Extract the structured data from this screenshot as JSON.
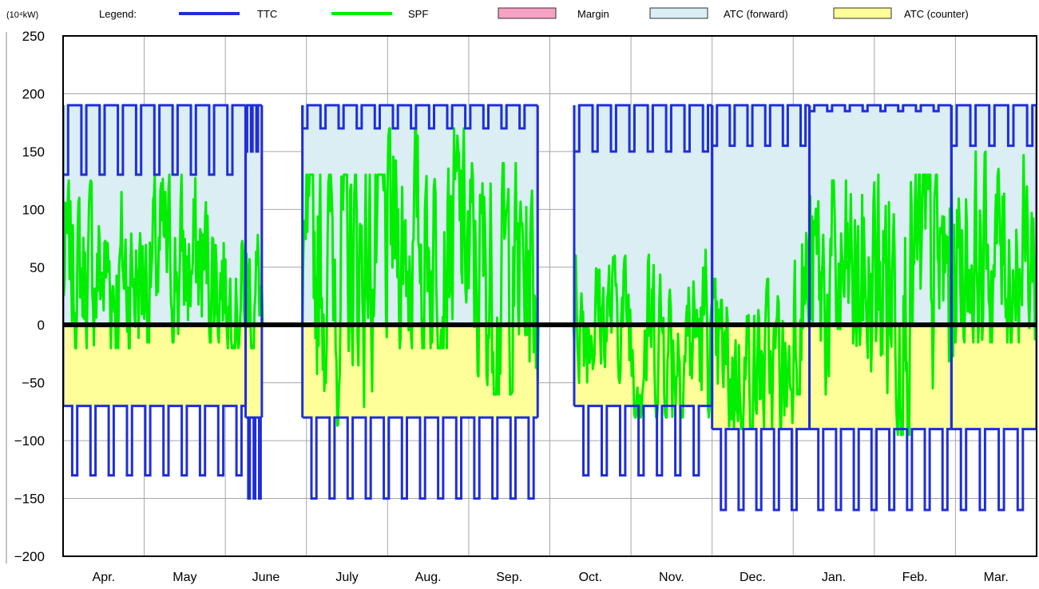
{
  "chart_data": {
    "type": "area",
    "unit_label": "(10⁴kW)",
    "legend_title": "Legend:",
    "ylim": [
      -200,
      250
    ],
    "yticks": [
      -200,
      -150,
      -100,
      -50,
      0,
      50,
      100,
      150,
      200,
      250
    ],
    "categories": [
      "Apr.",
      "May",
      "June",
      "July",
      "Aug.",
      "Sep.",
      "Oct.",
      "Nov.",
      "Dec.",
      "Jan.",
      "Feb.",
      "Mar."
    ],
    "grid": true,
    "legend": "top",
    "series": [
      {
        "name": "TTC",
        "color": "#1f2ed8",
        "style": "line",
        "periods": [
          {
            "months": [
              0,
              2.25
            ],
            "fwd": 190,
            "fwd_low": 130,
            "ctr": -70,
            "ctr_low": -130
          },
          {
            "months": [
              2.25,
              2.45
            ],
            "fwd": 190,
            "fwd_low": 150,
            "ctr": -80,
            "ctr_low": -150
          },
          {
            "months": [
              2.95,
              5.85
            ],
            "fwd": 190,
            "fwd_low": 170,
            "ctr": -80,
            "ctr_low": -150
          },
          {
            "months": [
              6.3,
              8.0
            ],
            "fwd": 190,
            "fwd_low": 150,
            "ctr": -70,
            "ctr_low": -130
          },
          {
            "months": [
              8.0,
              9.2
            ],
            "fwd": 190,
            "fwd_low": 155,
            "ctr": -90,
            "ctr_low": -160
          },
          {
            "months": [
              9.2,
              10.95
            ],
            "fwd": 190,
            "fwd_low": 185,
            "ctr": -90,
            "ctr_low": -160
          },
          {
            "months": [
              10.95,
              12.0
            ],
            "fwd": 190,
            "fwd_low": 155,
            "ctr": -90,
            "ctr_low": -160
          }
        ]
      },
      {
        "name": "SPF",
        "color": "#00ee00",
        "style": "line",
        "monthly_mean": [
          45,
          50,
          30,
          60,
          75,
          40,
          10,
          -10,
          -40,
          30,
          40,
          60
        ],
        "monthly_range": [
          [
            -20,
            125
          ],
          [
            -15,
            130
          ],
          [
            -20,
            90
          ],
          [
            -90,
            130
          ],
          [
            -20,
            170
          ],
          [
            -60,
            140
          ],
          [
            -50,
            60
          ],
          [
            -80,
            65
          ],
          [
            -90,
            40
          ],
          [
            -60,
            125
          ],
          [
            -95,
            130
          ],
          [
            -15,
            150
          ]
        ]
      },
      {
        "name": "Margin",
        "color": "#f7a1c4",
        "style": "area"
      },
      {
        "name": "ATC (forward)",
        "color": "#daeef3",
        "style": "area"
      },
      {
        "name": "ATC (counter)",
        "color": "#ffff99",
        "style": "area"
      }
    ]
  }
}
